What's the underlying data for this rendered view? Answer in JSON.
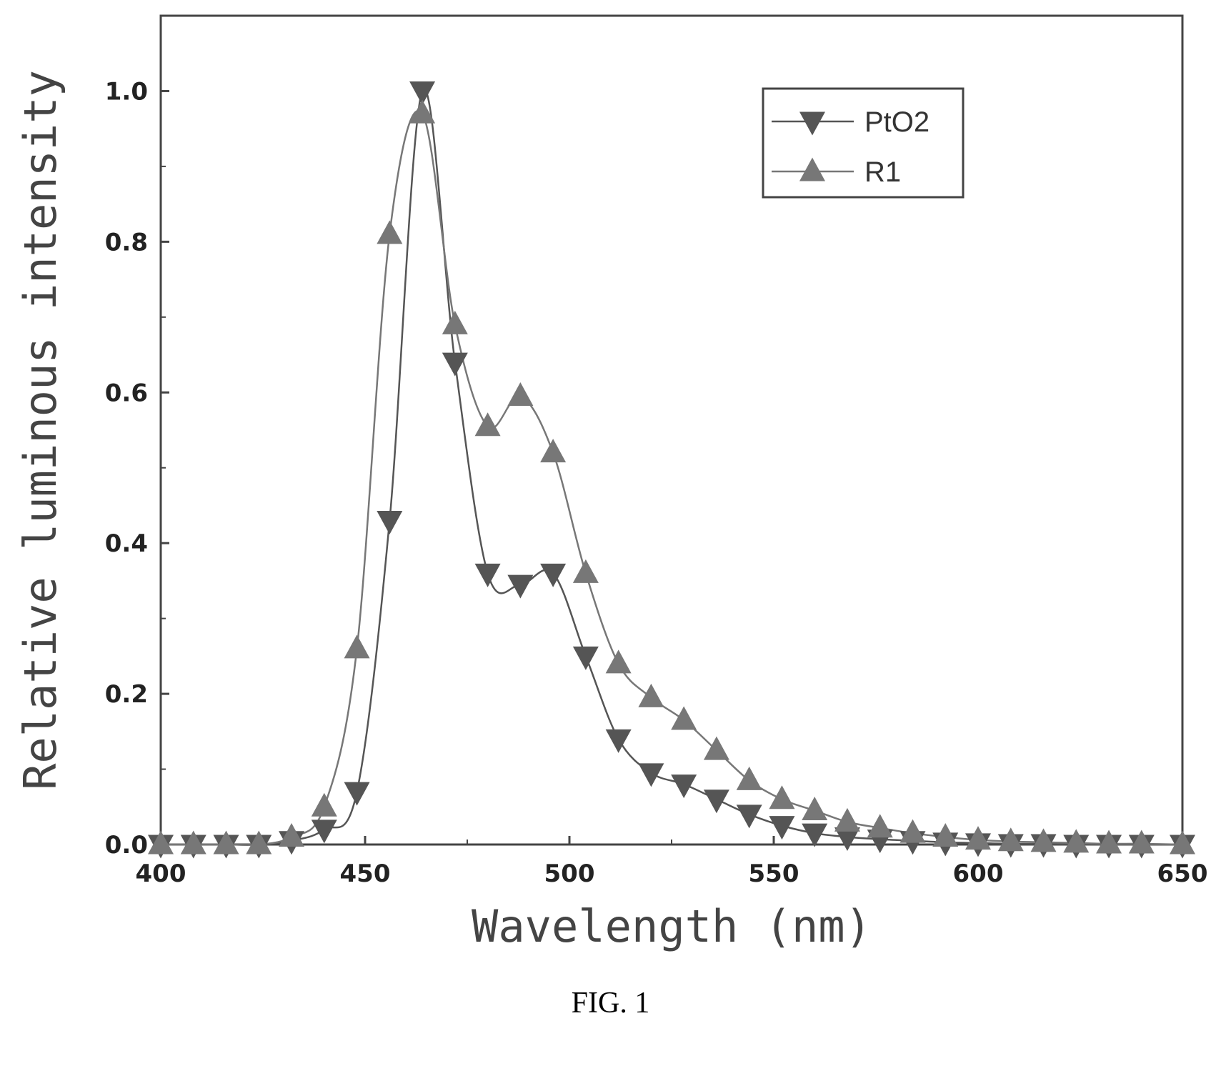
{
  "chart_data": {
    "type": "line",
    "xlabel": "Wavelength (nm)",
    "ylabel": "Relative luminous intensity",
    "xlim": [
      400,
      650
    ],
    "ylim": [
      0.0,
      1.1
    ],
    "x_ticks": [
      "400",
      "450",
      "500",
      "550",
      "600",
      "650"
    ],
    "y_ticks": [
      "0.0",
      "0.2",
      "0.4",
      "0.6",
      "0.8",
      "1.0"
    ],
    "legend_placement": "top-right",
    "grid": false,
    "series": [
      {
        "name": "PtO2",
        "marker": "triangle-down",
        "color": "#555555",
        "x": [
          400,
          408,
          416,
          424,
          432,
          440,
          448,
          456,
          464,
          472,
          480,
          488,
          496,
          504,
          512,
          520,
          528,
          536,
          544,
          552,
          560,
          568,
          576,
          584,
          592,
          600,
          608,
          616,
          624,
          632,
          640,
          650
        ],
        "y": [
          0.0,
          0.0,
          0.0,
          0.0,
          0.005,
          0.02,
          0.07,
          0.43,
          1.0,
          0.64,
          0.36,
          0.345,
          0.36,
          0.25,
          0.14,
          0.095,
          0.08,
          0.06,
          0.04,
          0.025,
          0.015,
          0.01,
          0.007,
          0.005,
          0.003,
          0.002,
          0.001,
          0.001,
          0.0,
          0.0,
          0.0,
          0.0
        ]
      },
      {
        "name": "R1",
        "marker": "triangle-up",
        "color": "#777777",
        "x": [
          400,
          408,
          416,
          424,
          432,
          440,
          448,
          456,
          464,
          472,
          480,
          488,
          496,
          504,
          512,
          520,
          528,
          536,
          544,
          552,
          560,
          568,
          576,
          584,
          592,
          600,
          608,
          616,
          624,
          632,
          640,
          650
        ],
        "y": [
          0.0,
          0.0,
          0.0,
          0.0,
          0.01,
          0.05,
          0.26,
          0.81,
          0.97,
          0.69,
          0.555,
          0.595,
          0.52,
          0.36,
          0.24,
          0.195,
          0.165,
          0.125,
          0.085,
          0.06,
          0.045,
          0.03,
          0.022,
          0.015,
          0.01,
          0.006,
          0.004,
          0.003,
          0.002,
          0.001,
          0.001,
          0.0
        ]
      }
    ]
  },
  "caption": "FIG. 1"
}
